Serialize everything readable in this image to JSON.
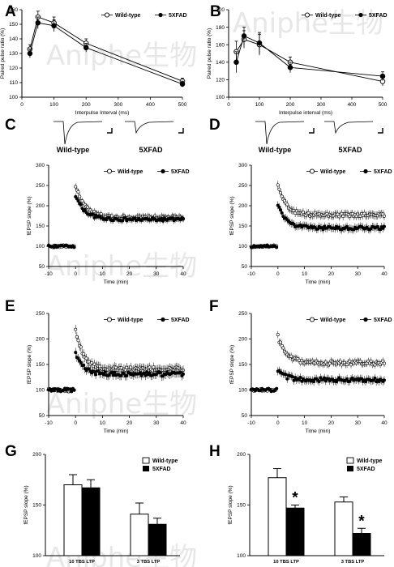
{
  "watermark": "Aniphe生物",
  "legend": {
    "wt": "Wild-type",
    "fad": "5XFAD"
  },
  "chart_data": [
    {
      "panel": "A",
      "type": "line",
      "xlabel": "Interpulse Interval (ms)",
      "ylabel": "Paired pulse ratio (%)",
      "xlim": [
        0,
        500
      ],
      "ylim": [
        100,
        160
      ],
      "xticks": [
        0,
        100,
        200,
        300,
        400,
        500
      ],
      "yticks": [
        100,
        110,
        120,
        130,
        140,
        150,
        160
      ],
      "x": [
        25,
        50,
        100,
        200,
        500
      ],
      "series": [
        {
          "name": "Wild-type",
          "values": [
            133,
            155,
            151,
            137,
            111
          ],
          "err": [
            3,
            4,
            4,
            3,
            2
          ]
        },
        {
          "name": "5XFAD",
          "values": [
            130,
            151,
            149,
            134,
            109
          ],
          "err": [
            3,
            4,
            4,
            3,
            2
          ]
        }
      ]
    },
    {
      "panel": "B",
      "type": "line",
      "xlabel": "Interpulse interval (ms)",
      "ylabel": "Paired pulse ratio (%)",
      "xlim": [
        0,
        500
      ],
      "ylim": [
        100,
        200
      ],
      "xticks": [
        0,
        100,
        200,
        300,
        400,
        500
      ],
      "yticks": [
        100,
        120,
        140,
        160,
        180,
        200
      ],
      "x": [
        25,
        50,
        100,
        200,
        500
      ],
      "series": [
        {
          "name": "Wild-type",
          "values": [
            152,
            166,
            160,
            140,
            118
          ],
          "err": [
            12,
            10,
            12,
            6,
            5
          ]
        },
        {
          "name": "5XFAD",
          "values": [
            140,
            170,
            162,
            134,
            124
          ],
          "err": [
            12,
            10,
            12,
            6,
            5
          ]
        }
      ]
    },
    {
      "panel": "C",
      "type": "scatter",
      "xlabel": "Time (min)",
      "ylabel": "fEPSP slope (%)",
      "xlim": [
        -10,
        40
      ],
      "ylim": [
        50,
        300
      ],
      "xticks": [
        -10,
        0,
        10,
        20,
        30,
        40
      ],
      "yticks": [
        50,
        100,
        150,
        200,
        250,
        300
      ],
      "trace_labels": [
        "Wild-type",
        "5XFAD"
      ],
      "series": [
        {
          "name": "Wild-type",
          "baseline": 100,
          "peak": 250,
          "plateau": 171,
          "tau": 3.5,
          "err": 8
        },
        {
          "name": "5XFAD",
          "baseline": 100,
          "peak": 225,
          "plateau": 166,
          "tau": 3.5,
          "err": 8
        }
      ]
    },
    {
      "panel": "D",
      "type": "scatter",
      "xlabel": "Time (min)",
      "ylabel": "fEPSP slope (%)",
      "xlim": [
        -10,
        40
      ],
      "ylim": [
        50,
        300
      ],
      "xticks": [
        -10,
        0,
        10,
        20,
        30,
        40
      ],
      "yticks": [
        50,
        100,
        150,
        200,
        250,
        300
      ],
      "trace_labels": [
        "Wild-type",
        "5XFAD"
      ],
      "series": [
        {
          "name": "Wild-type",
          "baseline": 100,
          "peak": 250,
          "plateau": 177,
          "tau": 3,
          "err": 10
        },
        {
          "name": "5XFAD",
          "baseline": 100,
          "peak": 205,
          "plateau": 145,
          "tau": 3,
          "err": 10
        }
      ]
    },
    {
      "panel": "E",
      "type": "scatter",
      "xlabel": "Time (min)",
      "ylabel": "fEPSP slope (%)",
      "xlim": [
        -10,
        40
      ],
      "ylim": [
        50,
        250
      ],
      "xticks": [
        -10,
        0,
        10,
        20,
        30,
        40
      ],
      "yticks": [
        50,
        100,
        150,
        200,
        250
      ],
      "series": [
        {
          "name": "Wild-type",
          "baseline": 100,
          "peak": 220,
          "plateau": 141,
          "tau": 3,
          "err": 9
        },
        {
          "name": "5XFAD",
          "baseline": 100,
          "peak": 170,
          "plateau": 131,
          "tau": 3,
          "err": 9
        }
      ]
    },
    {
      "panel": "F",
      "type": "scatter",
      "xlabel": "Time (min)",
      "ylabel": "fEPSP slope (%)",
      "xlim": [
        -10,
        40
      ],
      "ylim": [
        50,
        250
      ],
      "xticks": [
        -10,
        0,
        10,
        20,
        30,
        40
      ],
      "yticks": [
        50,
        100,
        150,
        200,
        250
      ],
      "series": [
        {
          "name": "Wild-type",
          "baseline": 100,
          "peak": 205,
          "plateau": 153,
          "tau": 3,
          "err": 7
        },
        {
          "name": "5XFAD",
          "baseline": 100,
          "peak": 138,
          "plateau": 120,
          "tau": 3,
          "err": 8
        }
      ]
    },
    {
      "panel": "G",
      "type": "bar",
      "ylabel": "fEPSP slope (%)",
      "ylim": [
        100,
        200
      ],
      "yticks": [
        100,
        150,
        200
      ],
      "categories": [
        "10 TBS LTP",
        "3 TBS LTP"
      ],
      "series": [
        {
          "name": "Wild-type",
          "values": [
            170,
            141
          ],
          "err": [
            10,
            11
          ]
        },
        {
          "name": "5XFAD",
          "values": [
            167,
            131
          ],
          "err": [
            8,
            6
          ]
        }
      ]
    },
    {
      "panel": "H",
      "type": "bar",
      "ylabel": "fEPSP slope (%)",
      "ylim": [
        100,
        200
      ],
      "yticks": [
        100,
        150,
        200
      ],
      "categories": [
        "10 TBS LTP",
        "3 TBS LTP"
      ],
      "series": [
        {
          "name": "Wild-type",
          "values": [
            177,
            153
          ],
          "err": [
            9,
            5
          ]
        },
        {
          "name": "5XFAD",
          "values": [
            147,
            122
          ],
          "err": [
            3,
            5
          ]
        }
      ],
      "significance": [
        "*",
        "*"
      ]
    }
  ]
}
